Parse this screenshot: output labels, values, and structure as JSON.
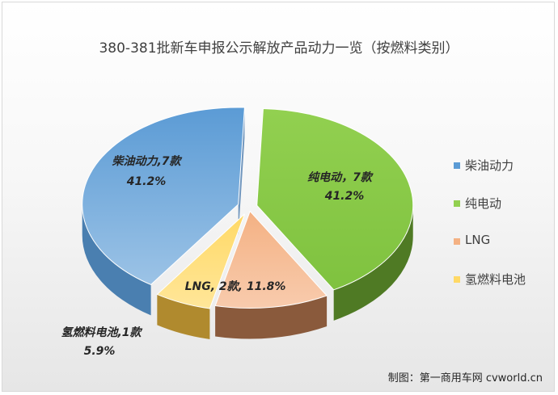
{
  "chart_data": {
    "type": "pie",
    "title": "380-381批新车申报公示解放产品动力一览（按燃料类别）",
    "style": "3d-exploded",
    "slices": [
      {
        "name": "柴油动力",
        "value": 7,
        "percent": 41.2,
        "label_line1": "柴油动力,7款",
        "label_line2": "41.2%",
        "color": "#5b9bd5"
      },
      {
        "name": "纯电动",
        "value": 7,
        "percent": 41.2,
        "label_line1": "纯电动，7款",
        "label_line2": "41.2%",
        "color": "#92d050"
      },
      {
        "name": "LNG",
        "value": 2,
        "percent": 11.8,
        "label_line1": "LNG, 2款, 11.8%",
        "label_line2": "",
        "color": "#f4b183"
      },
      {
        "name": "氢燃料电池",
        "value": 1,
        "percent": 5.9,
        "label_line1": "氢燃料电池,1款",
        "label_line2": "5.9%",
        "color": "#ffd966"
      }
    ],
    "legend": [
      "柴油动力",
      "纯电动",
      "LNG",
      "氢燃料电池"
    ],
    "legend_position": "right"
  },
  "credit": "制图：第一商用车网 cvworld.cn"
}
